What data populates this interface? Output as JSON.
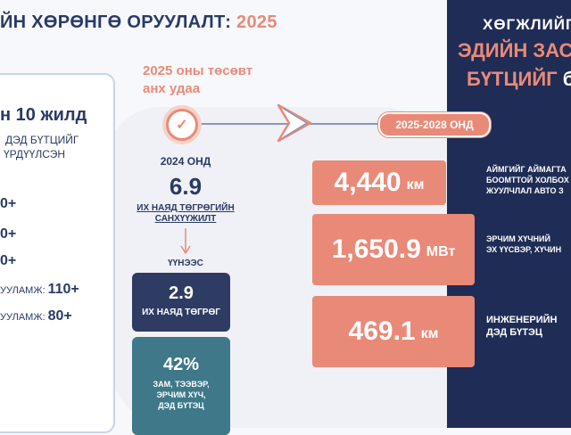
{
  "title": {
    "text": "ЙН ХӨРӨНГӨ ОРУУЛАЛТ: ",
    "year": "2025"
  },
  "left_card": {
    "heading": "н 10 жилд",
    "sub1": "ДЭД БҮТЦИЙГ",
    "sub2": "ҮРДҮҮЛСЭН",
    "items": [
      "0+",
      "0+",
      "0+"
    ],
    "item4_label": "УУЛАМЖ: ",
    "item4_value": "110+",
    "item5_label": "УУЛАМЖ: ",
    "item5_value": "80+"
  },
  "budget_note": {
    "line1": "2025 оны төсөвт",
    "line2": "анх удаа"
  },
  "check_icon": "check-icon",
  "year_2024": {
    "label": "2024 ОНД",
    "value": "6.9",
    "desc1": "ИХ НАЯД ТӨГРӨГИЙН",
    "desc2": "САНХҮҮЖИЛТ"
  },
  "uunees": "ҮҮНЭЭС",
  "box_trillion": {
    "value": "2.9",
    "label": "ИХ НАЯД ТӨГРӨГ"
  },
  "box_percent": {
    "value": "42%",
    "line1": "ЗАМ, ТЭЭВЭР,",
    "line2": "ЭРЧИМ ХҮЧ,",
    "line3": "ДЭД БҮТЭЦ"
  },
  "period_pill": "2025-2028 ОНД",
  "stats": [
    {
      "value": "4,440",
      "unit": "км",
      "desc1": "АЙМГИЙГ АЙМАГТА",
      "desc2": "БООМТТОЙ ХОЛБОХ",
      "desc3": "ЖУУЛЧЛАЛ АВТО З"
    },
    {
      "value": "1,650.9",
      "unit": "МВт",
      "desc1": "ЭРЧИМ ХҮЧНИЙ",
      "desc2": "ЭХ ҮҮСВЭР, ХҮЧИН",
      "desc3": ""
    },
    {
      "value": "469.1",
      "unit": "км",
      "desc1": "ИНЖЕНЕРИЙН",
      "desc2": "ДЭД БҮТЭЦ",
      "desc3": ""
    }
  ],
  "right_panel": {
    "line1": "ХӨГЖЛИЙГ",
    "line2": "ЭДИЙН ЗАС",
    "line3": "БҮТЦИЙГ",
    "line3_tail": "б"
  },
  "colors": {
    "navy": "#1f2c55",
    "coral": "#e98a78",
    "teal": "#3e7889",
    "dark_box": "#2e3c63"
  }
}
